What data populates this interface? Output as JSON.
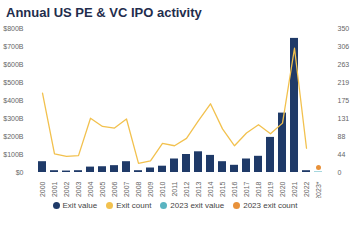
{
  "chart_data": {
    "type": "bar",
    "title": "Annual US PE & VC IPO activity",
    "categories": [
      "2000",
      "2001",
      "2002",
      "2003",
      "2004",
      "2005",
      "2006",
      "2007",
      "2008",
      "2009",
      "2010",
      "2011",
      "2012",
      "2013",
      "2014",
      "2015",
      "2016",
      "2017",
      "2018",
      "2019",
      "2020",
      "2021",
      "2022",
      "2023*"
    ],
    "series": [
      {
        "name": "Exit value",
        "type": "bar",
        "color": "#1f3a68",
        "values": [
          60,
          10,
          8,
          10,
          30,
          32,
          38,
          60,
          10,
          25,
          35,
          75,
          100,
          115,
          95,
          60,
          40,
          75,
          90,
          195,
          330,
          745,
          10,
          null
        ]
      },
      {
        "name": "Exit count",
        "type": "line",
        "color": "#f2c14e",
        "axis": "y2",
        "values": [
          193,
          45,
          39,
          41,
          132,
          112,
          108,
          130,
          22,
          28,
          71,
          65,
          83,
          126,
          167,
          106,
          65,
          96,
          116,
          94,
          120,
          302,
          59,
          null
        ]
      },
      {
        "name": "2023 exit value",
        "type": "bar",
        "color": "#5ab4c1",
        "values": [
          null,
          null,
          null,
          null,
          null,
          null,
          null,
          null,
          null,
          null,
          null,
          null,
          null,
          null,
          null,
          null,
          null,
          null,
          null,
          null,
          null,
          null,
          null,
          3
        ]
      },
      {
        "name": "2023 exit count",
        "type": "scatter",
        "marker": "circle",
        "color": "#e8913a",
        "axis": "y2",
        "values": [
          null,
          null,
          null,
          null,
          null,
          null,
          null,
          null,
          null,
          null,
          null,
          null,
          null,
          null,
          null,
          null,
          null,
          null,
          null,
          null,
          null,
          null,
          null,
          12
        ]
      }
    ],
    "ylim": [
      0,
      800
    ],
    "yticks": [
      {
        "value": 0,
        "label": "$0"
      },
      {
        "value": 100,
        "label": "$100B"
      },
      {
        "value": 200,
        "label": "$200B"
      },
      {
        "value": 300,
        "label": "$300B"
      },
      {
        "value": 400,
        "label": "$400B"
      },
      {
        "value": 500,
        "label": "$500B"
      },
      {
        "value": 600,
        "label": "$600B"
      },
      {
        "value": 700,
        "label": "$700B"
      },
      {
        "value": 800,
        "label": "$800B"
      }
    ],
    "y2lim": [
      0,
      350
    ],
    "y2ticks": [
      0,
      44,
      88,
      131,
      175,
      219,
      263,
      306,
      350
    ],
    "grid": false,
    "legend": "bottom"
  }
}
